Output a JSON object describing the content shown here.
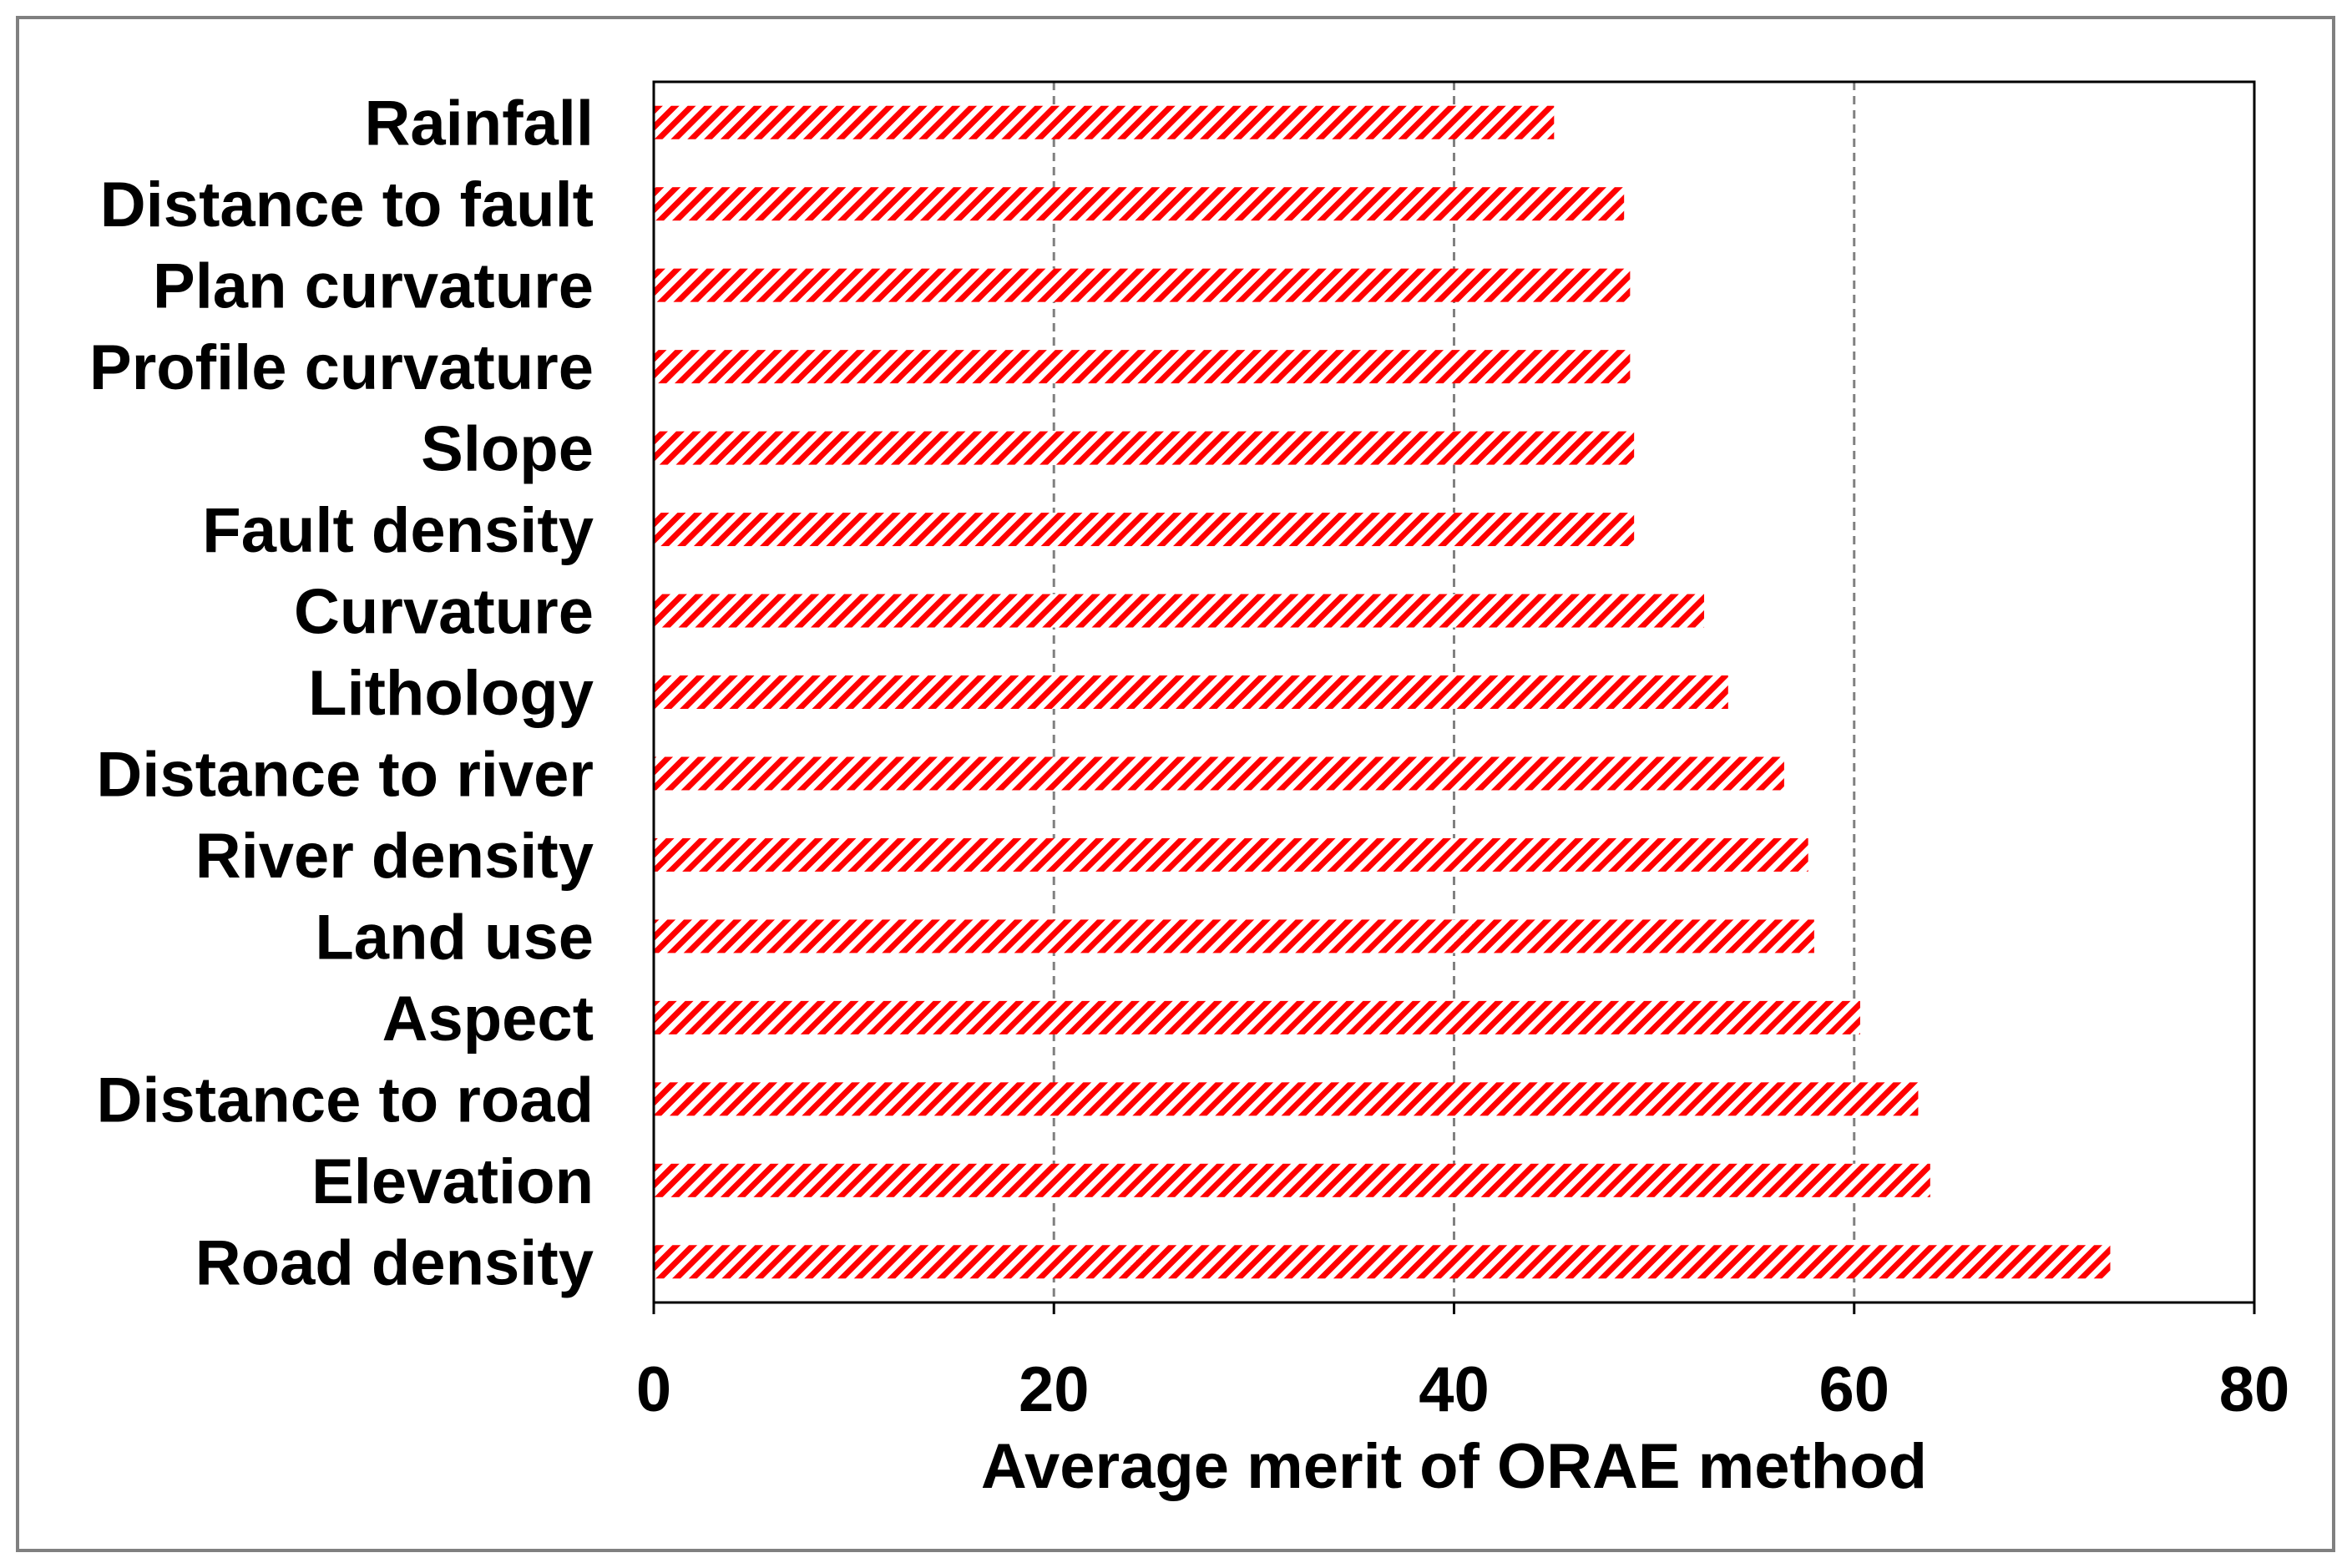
{
  "chart_data": {
    "type": "bar",
    "orientation": "horizontal",
    "title": "",
    "xlabel": "Average merit of ORAE method",
    "ylabel": "",
    "xlim": [
      0,
      80
    ],
    "x_ticks": [
      0,
      20,
      40,
      60,
      80
    ],
    "x_tick_labels": [
      "0",
      "20",
      "40",
      "60",
      "80"
    ],
    "grid": "vertical dashed",
    "bar_fill": "diagonal hatch",
    "categories": [
      "Rainfall",
      "Distance to fault",
      "Plan curvature",
      "Profile curvature",
      "Slope",
      "Fault density",
      "Curvature",
      "Lithology",
      "Distance to river",
      "River density",
      "Land use",
      "Aspect",
      "Distance to road",
      "Elevation",
      "Road density"
    ],
    "values": [
      45.0,
      48.5,
      48.8,
      48.8,
      49.0,
      49.0,
      52.5,
      53.7,
      56.5,
      57.7,
      58.0,
      60.3,
      63.2,
      63.8,
      72.8
    ]
  },
  "colors": {
    "bar_hatch": "#ff0000",
    "bar_background": "#ffffff",
    "axis": "#000000",
    "grid": "#808080",
    "outer_border": "#808080"
  }
}
